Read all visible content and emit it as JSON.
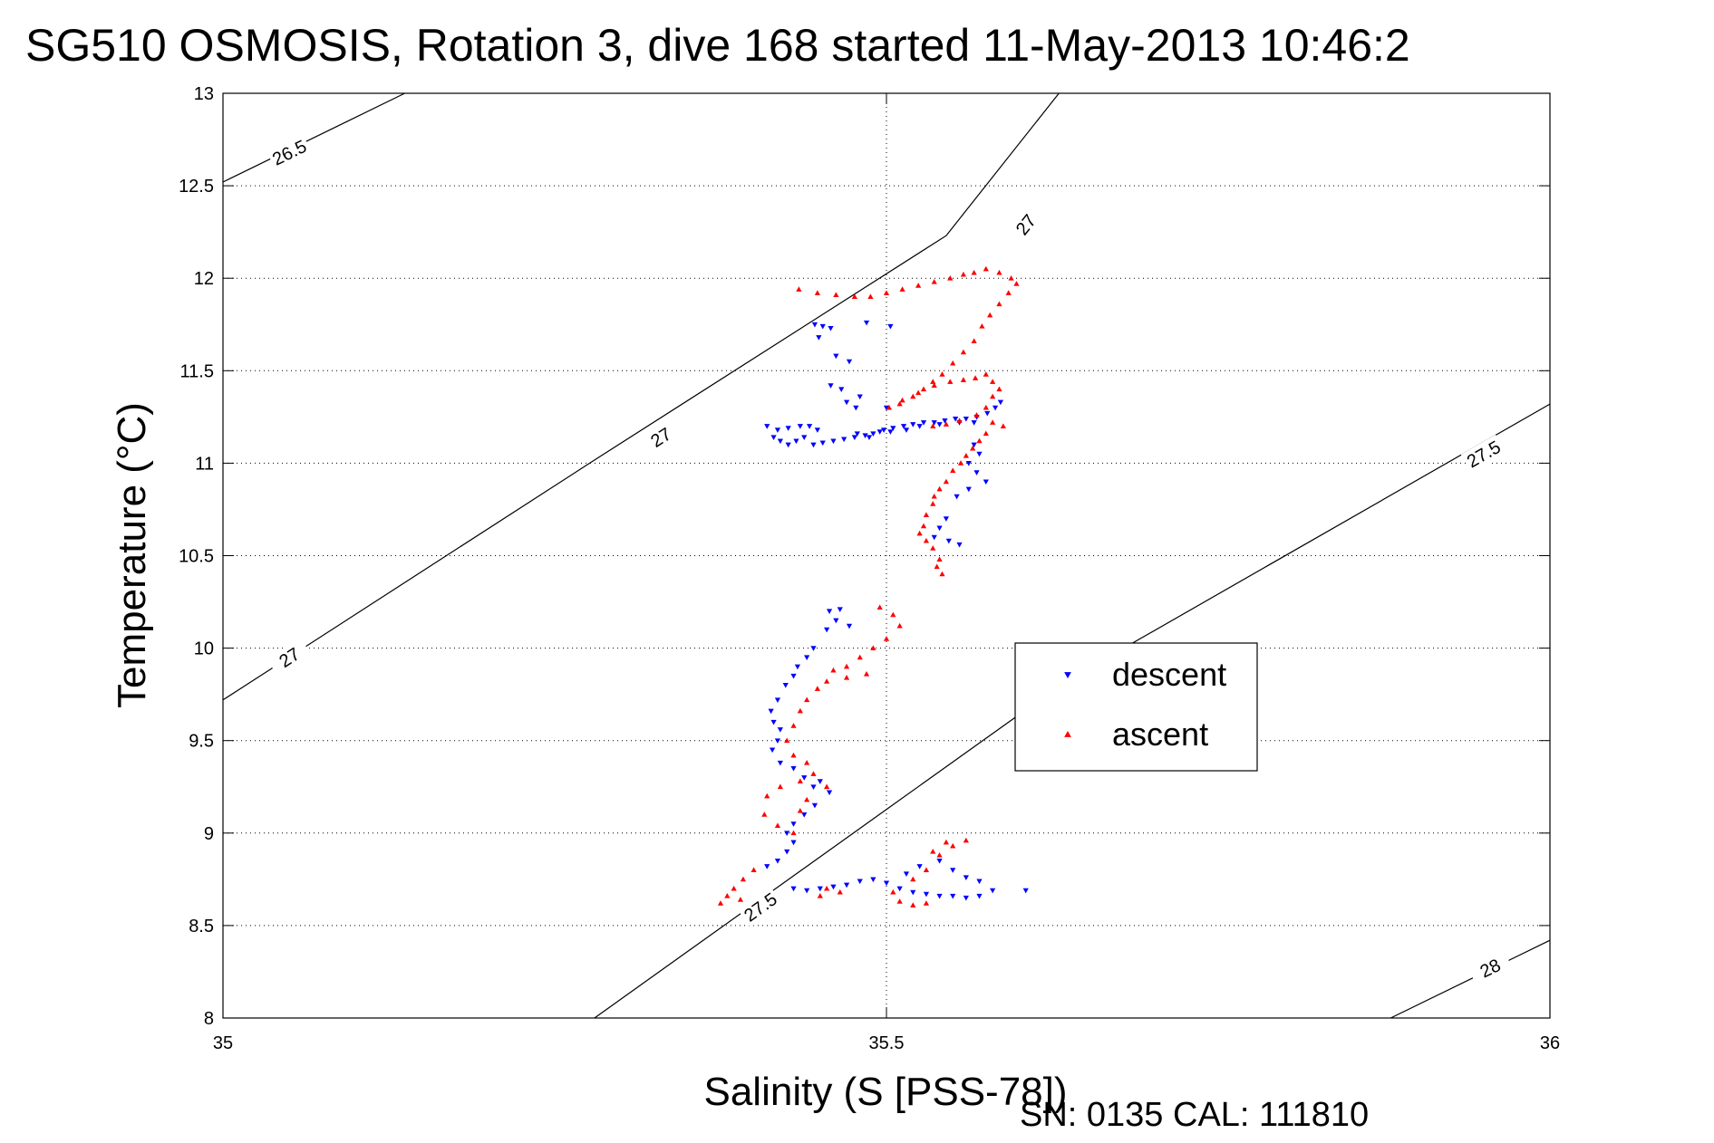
{
  "chart_data": {
    "type": "scatter",
    "title": "SG510 OSMOSIS, Rotation 3, dive 168 started 11-May-2013 10:46:2",
    "xlabel": "Salinity (S [PSS-78])",
    "ylabel": "Temperature (°C)",
    "xlim": [
      35,
      36
    ],
    "ylim": [
      8,
      13
    ],
    "grid": true,
    "legend_position": "center-right",
    "x_ticks": [
      "35",
      "35.5",
      "36"
    ],
    "y_ticks": [
      "8",
      "8.5",
      "9",
      "9.5",
      "10",
      "10.5",
      "11",
      "11.5",
      "12",
      "12.5",
      "13"
    ],
    "footer": "SN: 0135  CAL: 111810",
    "density_contours": [
      {
        "label": "26.5",
        "points": [
          [
            35.0,
            12.52
          ],
          [
            35.137,
            13.0
          ]
        ],
        "label_at": [
          [
            35.05,
            12.68
          ]
        ]
      },
      {
        "label": "27",
        "points": [
          [
            35.0,
            9.72
          ],
          [
            35.285,
            11.04
          ],
          [
            35.545,
            12.23
          ],
          [
            35.63,
            13.0
          ]
        ],
        "label_at": [
          [
            35.05,
            9.95
          ],
          [
            35.33,
            11.14
          ],
          [
            35.605,
            12.29
          ]
        ]
      },
      {
        "label": "27.5",
        "points": [
          [
            35.28,
            8.0
          ],
          [
            35.635,
            9.82
          ],
          [
            36.0,
            11.32
          ]
        ],
        "label_at": [
          [
            35.405,
            8.6
          ],
          [
            35.95,
            11.05
          ]
        ]
      },
      {
        "label": "28",
        "points": [
          [
            35.88,
            8.0
          ],
          [
            36.0,
            8.42
          ]
        ],
        "label_at": [
          [
            35.955,
            8.27
          ]
        ]
      }
    ],
    "series": [
      {
        "name": "descent",
        "color": "#0000ff",
        "marker": "triangle-down",
        "points": [
          [
            35.446,
            11.75
          ],
          [
            35.452,
            11.74
          ],
          [
            35.458,
            11.73
          ],
          [
            35.449,
            11.68
          ],
          [
            35.485,
            11.76
          ],
          [
            35.503,
            11.74
          ],
          [
            35.462,
            11.58
          ],
          [
            35.472,
            11.55
          ],
          [
            35.458,
            11.42
          ],
          [
            35.466,
            11.4
          ],
          [
            35.48,
            11.36
          ],
          [
            35.5,
            11.3
          ],
          [
            35.477,
            11.3
          ],
          [
            35.47,
            11.33
          ],
          [
            35.41,
            11.2
          ],
          [
            35.418,
            11.18
          ],
          [
            35.426,
            11.19
          ],
          [
            35.435,
            11.2
          ],
          [
            35.442,
            11.2
          ],
          [
            35.448,
            11.18
          ],
          [
            35.415,
            11.14
          ],
          [
            35.42,
            11.12
          ],
          [
            35.426,
            11.1
          ],
          [
            35.432,
            11.12
          ],
          [
            35.438,
            11.14
          ],
          [
            35.445,
            11.1
          ],
          [
            35.452,
            11.11
          ],
          [
            35.46,
            11.12
          ],
          [
            35.468,
            11.13
          ],
          [
            35.476,
            11.14
          ],
          [
            35.484,
            11.15
          ],
          [
            35.49,
            11.16
          ],
          [
            35.498,
            11.18
          ],
          [
            35.505,
            11.19
          ],
          [
            35.513,
            11.2
          ],
          [
            35.52,
            11.21
          ],
          [
            35.528,
            11.22
          ],
          [
            35.536,
            11.22
          ],
          [
            35.544,
            11.23
          ],
          [
            35.552,
            11.24
          ],
          [
            35.56,
            11.24
          ],
          [
            35.568,
            11.25
          ],
          [
            35.576,
            11.27
          ],
          [
            35.582,
            11.3
          ],
          [
            35.586,
            11.33
          ],
          [
            35.478,
            11.16
          ],
          [
            35.487,
            11.14
          ],
          [
            35.495,
            11.17
          ],
          [
            35.503,
            11.17
          ],
          [
            35.515,
            11.18
          ],
          [
            35.525,
            11.2
          ],
          [
            35.54,
            11.21
          ],
          [
            35.555,
            11.22
          ],
          [
            35.566,
            11.22
          ],
          [
            35.566,
            11.1
          ],
          [
            35.57,
            11.05
          ],
          [
            35.562,
            11.0
          ],
          [
            35.568,
            10.95
          ],
          [
            35.575,
            10.9
          ],
          [
            35.562,
            10.86
          ],
          [
            35.553,
            10.82
          ],
          [
            35.545,
            10.7
          ],
          [
            35.54,
            10.65
          ],
          [
            35.536,
            10.6
          ],
          [
            35.547,
            10.58
          ],
          [
            35.555,
            10.56
          ],
          [
            35.457,
            10.2
          ],
          [
            35.465,
            10.21
          ],
          [
            35.462,
            10.15
          ],
          [
            35.472,
            10.12
          ],
          [
            35.455,
            10.1
          ],
          [
            35.445,
            10.0
          ],
          [
            35.44,
            9.95
          ],
          [
            35.433,
            9.9
          ],
          [
            35.43,
            9.85
          ],
          [
            35.424,
            9.8
          ],
          [
            35.418,
            9.72
          ],
          [
            35.413,
            9.66
          ],
          [
            35.415,
            9.6
          ],
          [
            35.42,
            9.56
          ],
          [
            35.418,
            9.5
          ],
          [
            35.414,
            9.45
          ],
          [
            35.42,
            9.38
          ],
          [
            35.43,
            9.35
          ],
          [
            35.438,
            9.3
          ],
          [
            35.445,
            9.25
          ],
          [
            35.45,
            9.28
          ],
          [
            35.457,
            9.22
          ],
          [
            35.446,
            9.15
          ],
          [
            35.438,
            9.1
          ],
          [
            35.43,
            9.05
          ],
          [
            35.425,
            9.0
          ],
          [
            35.43,
            8.95
          ],
          [
            35.425,
            8.9
          ],
          [
            35.418,
            8.85
          ],
          [
            35.41,
            8.82
          ],
          [
            35.43,
            8.7
          ],
          [
            35.44,
            8.69
          ],
          [
            35.45,
            8.7
          ],
          [
            35.46,
            8.71
          ],
          [
            35.47,
            8.72
          ],
          [
            35.48,
            8.74
          ],
          [
            35.49,
            8.75
          ],
          [
            35.5,
            8.73
          ],
          [
            35.51,
            8.7
          ],
          [
            35.52,
            8.68
          ],
          [
            35.53,
            8.67
          ],
          [
            35.54,
            8.66
          ],
          [
            35.55,
            8.66
          ],
          [
            35.56,
            8.65
          ],
          [
            35.57,
            8.66
          ],
          [
            35.515,
            8.78
          ],
          [
            35.525,
            8.82
          ],
          [
            35.54,
            8.85
          ],
          [
            35.55,
            8.8
          ],
          [
            35.56,
            8.76
          ],
          [
            35.57,
            8.74
          ],
          [
            35.58,
            8.69
          ],
          [
            35.605,
            8.69
          ]
        ]
      },
      {
        "name": "ascent",
        "color": "#ff0000",
        "marker": "triangle-up",
        "points": [
          [
            35.434,
            11.94
          ],
          [
            35.448,
            11.92
          ],
          [
            35.462,
            11.91
          ],
          [
            35.476,
            11.9
          ],
          [
            35.488,
            11.9
          ],
          [
            35.5,
            11.92
          ],
          [
            35.512,
            11.94
          ],
          [
            35.524,
            11.96
          ],
          [
            35.536,
            11.98
          ],
          [
            35.548,
            12.0
          ],
          [
            35.558,
            12.02
          ],
          [
            35.566,
            12.03
          ],
          [
            35.575,
            12.05
          ],
          [
            35.585,
            12.03
          ],
          [
            35.594,
            12.0
          ],
          [
            35.598,
            11.97
          ],
          [
            35.592,
            11.92
          ],
          [
            35.585,
            11.86
          ],
          [
            35.578,
            11.8
          ],
          [
            35.572,
            11.74
          ],
          [
            35.566,
            11.66
          ],
          [
            35.558,
            11.6
          ],
          [
            35.55,
            11.54
          ],
          [
            35.542,
            11.48
          ],
          [
            35.535,
            11.44
          ],
          [
            35.528,
            11.4
          ],
          [
            35.52,
            11.36
          ],
          [
            35.51,
            11.32
          ],
          [
            35.502,
            11.3
          ],
          [
            35.512,
            11.34
          ],
          [
            35.524,
            11.38
          ],
          [
            35.536,
            11.42
          ],
          [
            35.548,
            11.44
          ],
          [
            35.558,
            11.45
          ],
          [
            35.567,
            11.46
          ],
          [
            35.575,
            11.48
          ],
          [
            35.58,
            11.44
          ],
          [
            35.585,
            11.4
          ],
          [
            35.58,
            11.36
          ],
          [
            35.575,
            11.3
          ],
          [
            35.568,
            11.26
          ],
          [
            35.555,
            11.23
          ],
          [
            35.545,
            11.21
          ],
          [
            35.535,
            11.2
          ],
          [
            35.58,
            11.22
          ],
          [
            35.588,
            11.2
          ],
          [
            35.575,
            11.16
          ],
          [
            35.57,
            11.12
          ],
          [
            35.565,
            11.08
          ],
          [
            35.56,
            11.04
          ],
          [
            35.556,
            11.0
          ],
          [
            35.55,
            10.96
          ],
          [
            35.545,
            10.9
          ],
          [
            35.54,
            10.86
          ],
          [
            35.536,
            10.82
          ],
          [
            35.535,
            10.78
          ],
          [
            35.53,
            10.72
          ],
          [
            35.528,
            10.66
          ],
          [
            35.525,
            10.62
          ],
          [
            35.53,
            10.58
          ],
          [
            35.535,
            10.54
          ],
          [
            35.54,
            10.48
          ],
          [
            35.538,
            10.44
          ],
          [
            35.542,
            10.4
          ],
          [
            35.495,
            10.22
          ],
          [
            35.505,
            10.18
          ],
          [
            35.51,
            10.12
          ],
          [
            35.5,
            10.05
          ],
          [
            35.49,
            10.0
          ],
          [
            35.48,
            9.95
          ],
          [
            35.47,
            9.9
          ],
          [
            35.46,
            9.88
          ],
          [
            35.455,
            9.82
          ],
          [
            35.448,
            9.78
          ],
          [
            35.485,
            9.86
          ],
          [
            35.47,
            9.84
          ],
          [
            35.44,
            9.72
          ],
          [
            35.435,
            9.66
          ],
          [
            35.43,
            9.58
          ],
          [
            35.425,
            9.5
          ],
          [
            35.43,
            9.42
          ],
          [
            35.44,
            9.38
          ],
          [
            35.445,
            9.32
          ],
          [
            35.435,
            9.28
          ],
          [
            35.42,
            9.25
          ],
          [
            35.41,
            9.2
          ],
          [
            35.408,
            9.1
          ],
          [
            35.418,
            9.04
          ],
          [
            35.43,
            9.0
          ],
          [
            35.435,
            9.12
          ],
          [
            35.44,
            9.18
          ],
          [
            35.455,
            9.25
          ],
          [
            35.4,
            8.8
          ],
          [
            35.392,
            8.75
          ],
          [
            35.385,
            8.7
          ],
          [
            35.38,
            8.66
          ],
          [
            35.375,
            8.62
          ],
          [
            35.39,
            8.64
          ],
          [
            35.455,
            8.7
          ],
          [
            35.465,
            8.68
          ],
          [
            35.45,
            8.66
          ],
          [
            35.51,
            8.63
          ],
          [
            35.52,
            8.61
          ],
          [
            35.53,
            8.62
          ],
          [
            35.505,
            8.68
          ],
          [
            35.52,
            8.75
          ],
          [
            35.53,
            8.8
          ],
          [
            35.54,
            8.88
          ],
          [
            35.55,
            8.93
          ],
          [
            35.56,
            8.96
          ],
          [
            35.545,
            8.95
          ],
          [
            35.535,
            8.9
          ]
        ]
      }
    ]
  }
}
